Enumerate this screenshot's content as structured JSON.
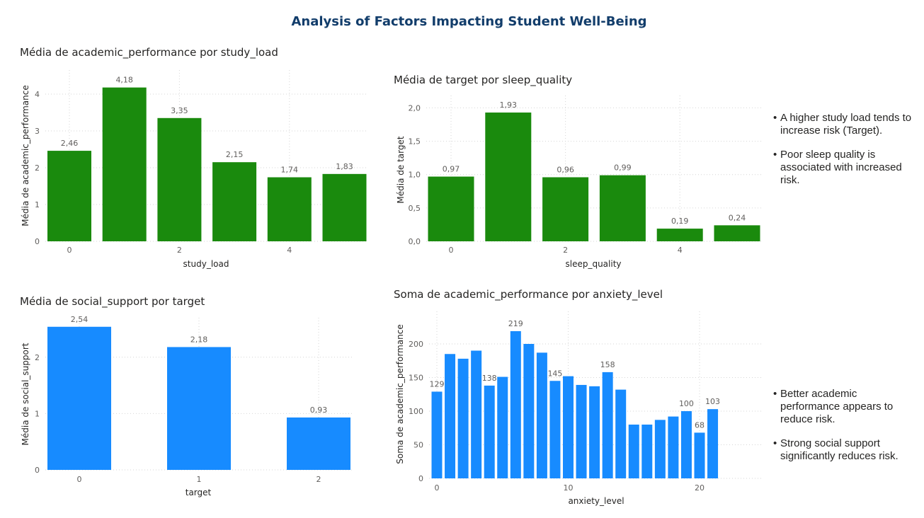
{
  "page": {
    "title": "Analysis of Factors Impacting Student Well-Being"
  },
  "colors": {
    "green": "#1a8a0d",
    "blue": "#178bff",
    "title": "#123d6b"
  },
  "notes_top": [
    "A higher study load tends to increase risk (Target).",
    "Poor sleep quality is associated with increased risk."
  ],
  "notes_bottom": [
    "Better academic performance appears to reduce risk.",
    "Strong social support significantly reduces risk."
  ],
  "chart_data": [
    {
      "id": "c1",
      "type": "bar",
      "title": "Média de academic_performance por study_load",
      "xlabel": "study_load",
      "ylabel": "Média de academic_performance",
      "categories": [
        0,
        1,
        2,
        3,
        4,
        5
      ],
      "values": [
        2.46,
        4.18,
        3.35,
        2.15,
        1.74,
        1.83
      ],
      "data_labels": [
        "2,46",
        "4,18",
        "3,35",
        "2,15",
        "1,74",
        "1,83"
      ],
      "x_ticks": [
        0,
        2,
        4
      ],
      "y_ticks": [
        0,
        1,
        2,
        3,
        4
      ],
      "y_tick_labels": [
        "0",
        "1",
        "2",
        "3",
        "4"
      ],
      "ylim": [
        0,
        4.5
      ],
      "color": "#1a8a0d",
      "grid": true
    },
    {
      "id": "c2",
      "type": "bar",
      "title": "Média de target por sleep_quality",
      "xlabel": "sleep_quality",
      "ylabel": "Média de target",
      "categories": [
        0,
        1,
        2,
        3,
        4,
        5
      ],
      "values": [
        0.97,
        1.93,
        0.96,
        0.99,
        0.19,
        0.24
      ],
      "data_labels": [
        "0,97",
        "1,93",
        "0,96",
        "0,99",
        "0,19",
        "0,24"
      ],
      "x_ticks": [
        0,
        2,
        4
      ],
      "y_ticks": [
        0,
        0.5,
        1,
        1.5,
        2
      ],
      "y_tick_labels": [
        "0,0",
        "0,5",
        "1,0",
        "1,5",
        "2,0"
      ],
      "ylim": [
        0,
        2.1
      ],
      "color": "#1a8a0d",
      "grid": true
    },
    {
      "id": "c3",
      "type": "bar",
      "title": "Média de social_support por target",
      "xlabel": "target",
      "ylabel": "Média de social_support",
      "categories": [
        0,
        1,
        2
      ],
      "values": [
        2.54,
        2.18,
        0.93
      ],
      "data_labels": [
        "2,54",
        "2,18",
        "0,93"
      ],
      "x_ticks": [
        0,
        1,
        2
      ],
      "y_ticks": [
        0,
        1,
        2
      ],
      "y_tick_labels": [
        "0",
        "1",
        "2"
      ],
      "ylim": [
        0,
        2.6
      ],
      "color": "#178bff",
      "grid": true
    },
    {
      "id": "c4",
      "type": "bar",
      "title": "Soma de academic_performance por anxiety_level",
      "xlabel": "anxiety_level",
      "ylabel": "Soma de academic_performance",
      "categories": [
        0,
        1,
        2,
        3,
        4,
        5,
        6,
        7,
        8,
        9,
        10,
        11,
        12,
        13,
        14,
        15,
        16,
        17,
        18,
        19,
        20,
        21
      ],
      "values": [
        129,
        185,
        178,
        190,
        138,
        151,
        219,
        200,
        187,
        145,
        152,
        139,
        137,
        158,
        132,
        80,
        80,
        87,
        92,
        100,
        68,
        103
      ],
      "data_labels": [
        "129",
        "",
        "",
        "",
        "138",
        "",
        "219",
        "",
        "",
        "145",
        "",
        "",
        "",
        "158",
        "",
        "",
        "",
        "",
        "",
        "100",
        "68",
        "103"
      ],
      "x_ticks": [
        0,
        10,
        20
      ],
      "y_ticks": [
        0,
        50,
        100,
        150,
        200
      ],
      "y_tick_labels": [
        "0",
        "50",
        "100",
        "150",
        "200"
      ],
      "ylim": [
        0,
        240
      ],
      "color": "#178bff",
      "grid": true
    }
  ]
}
